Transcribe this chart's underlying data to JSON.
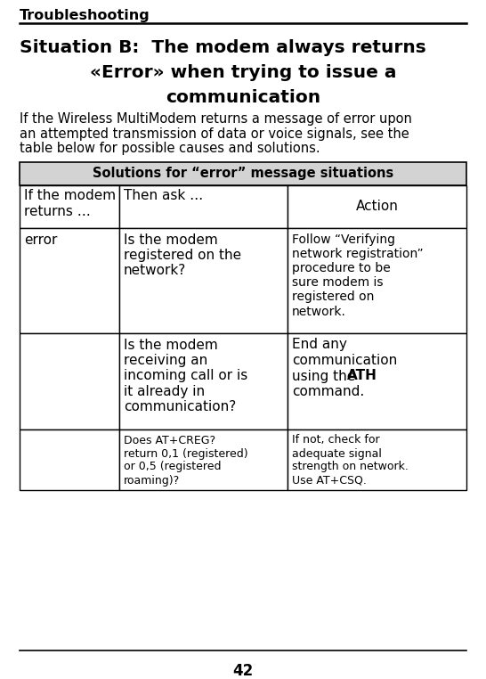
{
  "header": "Troubleshooting",
  "title_line1": "Situation B:  The modem always returns",
  "title_line2": "«Error» when trying to issue a",
  "title_line3": "communication",
  "intro": "If the Wireless MultiModem returns a message of error upon an attempted transmission of data or voice signals, see the table below for possible causes and solutions.",
  "table_title": "Solutions for “error” message situations",
  "col_header0": "If the modem\nreturns …",
  "col_header1": "Then ask …",
  "col_header2": "Action",
  "row1_c0": "error",
  "row1_c1": "Is the modem\nregistered on the\nnetwork?",
  "row1_c2": "Follow “Verifying\nnetwork registration”\nprocedure to be\nsure modem is\nregistered on\nnetwork.",
  "row2_c1": "Is the modem\nreceiving an\nincoming call or is\nit already in\ncommunication?",
  "row2_c2a": "End any\ncommunication\nusing the ",
  "row2_c2b": "ATH",
  "row2_c2c": "\ncommand.",
  "row3_c1": "Does AT+CREG?\nreturn 0,1 (registered)\nor 0,5 (registered\nroaming)?",
  "row3_c2": "If not, check for\nadequate signal\nstrength on network.\nUse AT+CSQ.",
  "page_number": "42",
  "bg_color": "#ffffff",
  "text_color": "#000000",
  "gray_bg": "#d3d3d3"
}
